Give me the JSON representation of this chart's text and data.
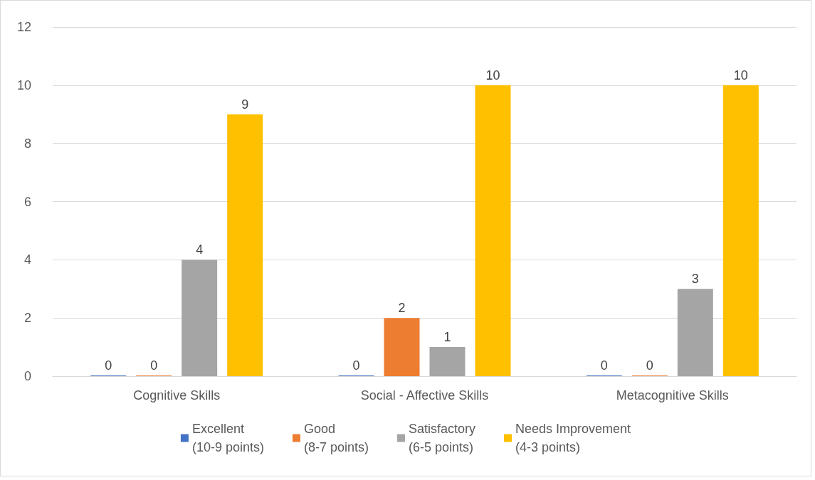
{
  "chart_data": {
    "type": "bar",
    "categories": [
      "Cognitive Skills",
      "Social - Affective Skills",
      "Metacognitive Skills"
    ],
    "series": [
      {
        "name": "Excellent\n(10-9 points)",
        "color": "#4472c4",
        "values": [
          0,
          0,
          0
        ]
      },
      {
        "name": "Good\n(8-7 points)",
        "color": "#ed7d31",
        "values": [
          0,
          2,
          0
        ]
      },
      {
        "name": "Satisfactory\n(6-5 points)",
        "color": "#a5a5a5",
        "values": [
          4,
          1,
          3
        ]
      },
      {
        "name": "Needs Improvement\n(4-3 points)",
        "color": "#ffc000",
        "values": [
          9,
          10,
          10
        ]
      }
    ],
    "ylim": [
      0,
      12
    ],
    "yticks": [
      0,
      2,
      4,
      6,
      8,
      10,
      12
    ],
    "grid": "y",
    "legend": "bottom",
    "data_labels": true
  }
}
